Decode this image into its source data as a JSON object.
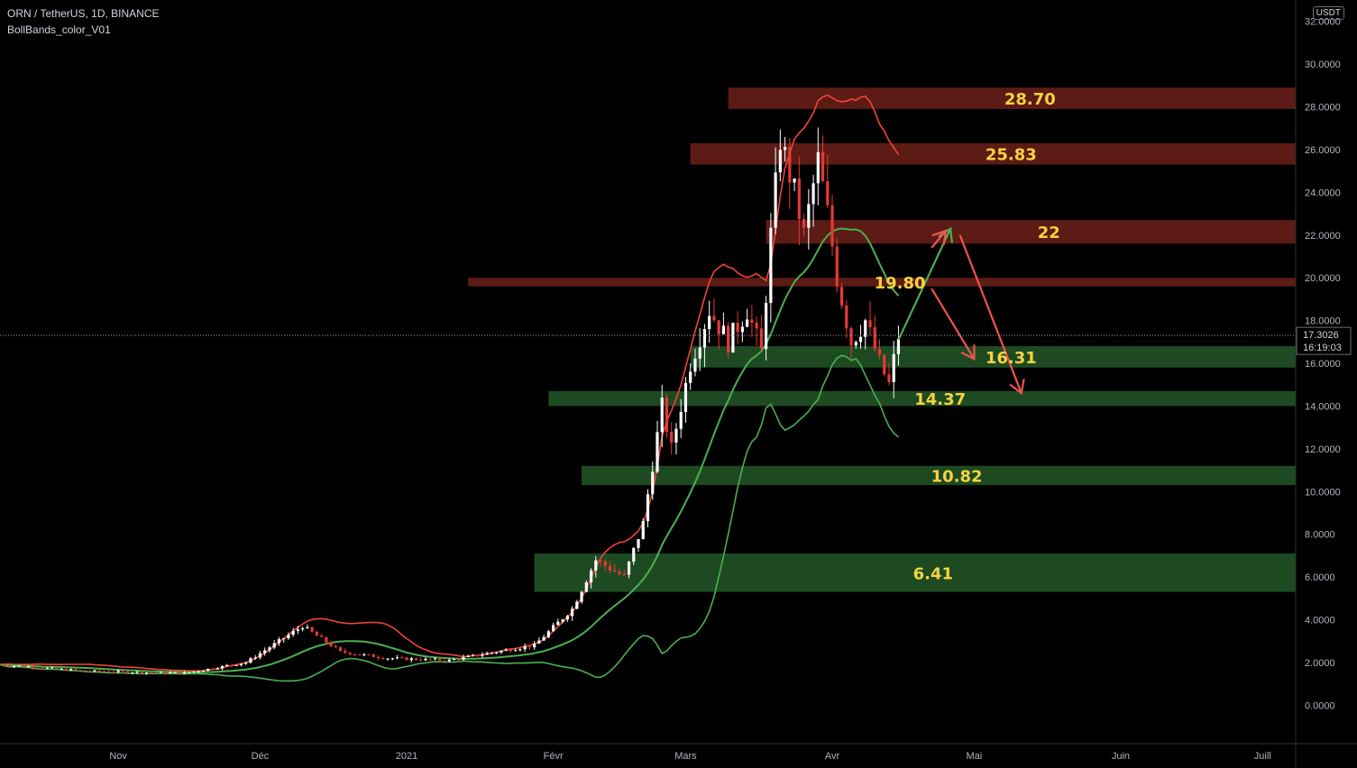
{
  "header": {
    "symbol": "ORN / TetherUS, 1D, BINANCE",
    "indicator": "BollBands_color_V01",
    "currency": "USDT"
  },
  "current_price": {
    "value": "17.3026",
    "countdown": "16:19:03",
    "numeric": 17.3026
  },
  "colors": {
    "background": "#000000",
    "red_zone": "#5c1b15",
    "green_zone": "#1e4a22",
    "label": "#f5d33f",
    "up": "#ffffff",
    "down": "#e53935",
    "band_green": "#4caf50",
    "band_red": "#f44336",
    "arrow_green": "#4caf50",
    "arrow_red": "#ef5350"
  },
  "chart_data": {
    "type": "candlestick",
    "y_ticks": [
      "32.0000",
      "30.0000",
      "28.0000",
      "26.0000",
      "24.0000",
      "22.0000",
      "20.0000",
      "18.0000",
      "16.0000",
      "14.0000",
      "12.0000",
      "10.0000",
      "8.0000",
      "6.0000",
      "4.0000",
      "2.0000",
      "0.0000"
    ],
    "ylim": [
      -1.8,
      33.0
    ],
    "x_ticks": [
      {
        "label": "Nov",
        "date": "2020-11-01"
      },
      {
        "label": "Déc",
        "date": "2020-12-01"
      },
      {
        "label": "2021",
        "date": "2021-01-01"
      },
      {
        "label": "Févr",
        "date": "2021-02-01"
      },
      {
        "label": "Mars",
        "date": "2021-03-01"
      },
      {
        "label": "Avr",
        "date": "2021-04-01"
      },
      {
        "label": "Mai",
        "date": "2021-05-01"
      },
      {
        "label": "Juin",
        "date": "2021-06-01"
      },
      {
        "label": "Juill",
        "date": "2021-07-01"
      }
    ],
    "xlim": [
      "2020-10-07",
      "2021-07-08"
    ],
    "zones": [
      {
        "label": "28.70",
        "kind": "resistance",
        "low": 27.9,
        "high": 28.9,
        "start": "2021-03-10"
      },
      {
        "label": "25.83",
        "kind": "resistance",
        "low": 25.3,
        "high": 26.3,
        "start": "2021-03-02"
      },
      {
        "label": "22",
        "kind": "resistance",
        "low": 21.6,
        "high": 22.7,
        "start": "2021-03-18"
      },
      {
        "label": "19.80",
        "kind": "resistance",
        "low": 19.6,
        "high": 20.0,
        "start": "2021-01-14"
      },
      {
        "label": "16.31",
        "kind": "support",
        "low": 15.8,
        "high": 16.8,
        "start": "2021-03-02"
      },
      {
        "label": "14.37",
        "kind": "support",
        "low": 14.0,
        "high": 14.7,
        "start": "2021-01-31"
      },
      {
        "label": "10.82",
        "kind": "support",
        "low": 10.3,
        "high": 11.2,
        "start": "2021-02-07"
      },
      {
        "label": "6.41",
        "kind": "support",
        "low": 5.3,
        "high": 7.1,
        "start": "2021-01-28"
      }
    ],
    "projections": [
      {
        "color": "green",
        "points": [
          [
            "2021-04-15",
            17.1
          ],
          [
            "2021-04-26",
            22.3
          ]
        ]
      },
      {
        "color": "red",
        "points": [
          [
            "2021-04-22",
            21.4
          ],
          [
            "2021-04-25",
            22.2
          ]
        ]
      },
      {
        "color": "red",
        "points": [
          [
            "2021-04-22",
            19.5
          ],
          [
            "2021-05-01",
            16.2
          ]
        ]
      },
      {
        "color": "red",
        "points": [
          [
            "2021-04-28",
            22.0
          ],
          [
            "2021-05-11",
            14.6
          ]
        ]
      }
    ]
  }
}
